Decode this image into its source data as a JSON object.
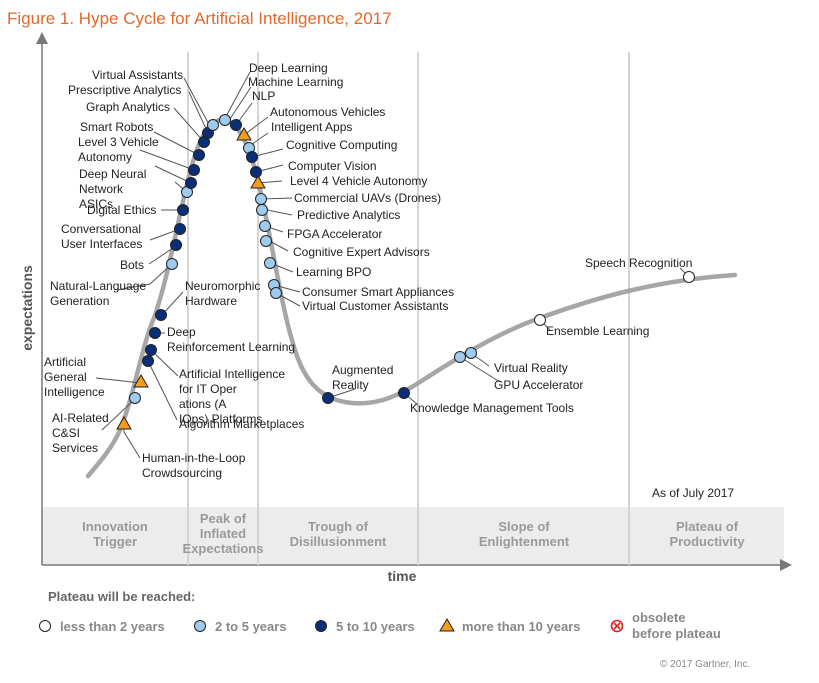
{
  "title": "Figure 1. Hype Cycle for Artificial Intelligence, 2017",
  "y_axis_label": "expectations",
  "x_axis_label": "time",
  "as_of": "As of July 2017",
  "copyright": "© 2017 Gartner, Inc.",
  "colors": {
    "title": "#e4682a",
    "lt2": "#ffffff",
    "y2to5": "#9fcbef",
    "y5to10": "#0b2e78",
    "gt10": "#f39c1d",
    "obsolete": "#e02020",
    "curve": "#a6a6a6"
  },
  "phases": [
    {
      "lines": [
        "Innovation",
        "Trigger"
      ]
    },
    {
      "lines": [
        "Peak of",
        "Inflated",
        "Expectations"
      ]
    },
    {
      "lines": [
        "Trough of",
        "Disillusionment"
      ]
    },
    {
      "lines": [
        "Slope of",
        "Enlightenment"
      ]
    },
    {
      "lines": [
        "Plateau of",
        "Productivity"
      ]
    }
  ],
  "legend": {
    "title": "Plateau will be reached:",
    "items": [
      {
        "category": "lt2",
        "label": "less than 2 years"
      },
      {
        "category": "y2to5",
        "label": "2 to 5 years"
      },
      {
        "category": "y5to10",
        "label": "5 to 10 years"
      },
      {
        "category": "gt10",
        "label": "more than 10 years"
      },
      {
        "category": "obsolete",
        "label": "obsolete before plateau"
      }
    ]
  },
  "technologies": [
    {
      "name": "Human-in-the-Loop Crowdsourcing",
      "category": "gt10"
    },
    {
      "name": "AI-Related C&SI Services",
      "category": "y2to5"
    },
    {
      "name": "Artificial General Intelligence",
      "category": "gt10"
    },
    {
      "name": "Algorithm Marketplaces",
      "category": "y5to10"
    },
    {
      "name": "Artificial Intelligence for IT Operations (AIOps) Platforms",
      "category": "y5to10"
    },
    {
      "name": "Deep Reinforcement Learning",
      "category": "y5to10"
    },
    {
      "name": "Neuromorphic Hardware",
      "category": "y5to10"
    },
    {
      "name": "Natural-Language Generation",
      "category": "y2to5"
    },
    {
      "name": "Bots",
      "category": "y5to10"
    },
    {
      "name": "Conversational User Interfaces",
      "category": "y5to10"
    },
    {
      "name": "Digital Ethics",
      "category": "y5to10"
    },
    {
      "name": "Deep Neural Network ASICs",
      "category": "y2to5"
    },
    {
      "name": "Level 3 Vehicle Autonomy",
      "category": "y5to10"
    },
    {
      "name": "Smart Robots",
      "category": "y5to10"
    },
    {
      "name": "Graph Analytics",
      "category": "y5to10"
    },
    {
      "name": "Prescriptive Analytics",
      "category": "y5to10"
    },
    {
      "name": "Virtual Assistants",
      "category": "y5to10"
    },
    {
      "name": "Deep Learning",
      "category": "y2to5"
    },
    {
      "name": "Machine Learning",
      "category": "y2to5"
    },
    {
      "name": "NLP",
      "category": "y5to10"
    },
    {
      "name": "Autonomous Vehicles",
      "category": "gt10"
    },
    {
      "name": "Intelligent Apps",
      "category": "y2to5"
    },
    {
      "name": "Cognitive Computing",
      "category": "y5to10"
    },
    {
      "name": "Computer Vision",
      "category": "y5to10"
    },
    {
      "name": "Level 4 Vehicle Autonomy",
      "category": "gt10"
    },
    {
      "name": "Commercial UAVs (Drones)",
      "category": "y2to5"
    },
    {
      "name": "Predictive Analytics",
      "category": "y2to5"
    },
    {
      "name": "FPGA Accelerator",
      "category": "y2to5"
    },
    {
      "name": "Cognitive Expert Advisors",
      "category": "y2to5"
    },
    {
      "name": "Learning BPO",
      "category": "y2to5"
    },
    {
      "name": "Consumer Smart Appliances",
      "category": "y2to5"
    },
    {
      "name": "Virtual Customer Assistants",
      "category": "y2to5"
    },
    {
      "name": "Augmented Reality",
      "category": "y5to10"
    },
    {
      "name": "Knowledge Management Tools",
      "category": "y5to10"
    },
    {
      "name": "Virtual Reality",
      "category": "y2to5"
    },
    {
      "name": "GPU Accelerator",
      "category": "y2to5"
    },
    {
      "name": "Ensemble Learning",
      "category": "lt2"
    },
    {
      "name": "Speech Recognition",
      "category": "lt2"
    }
  ]
}
